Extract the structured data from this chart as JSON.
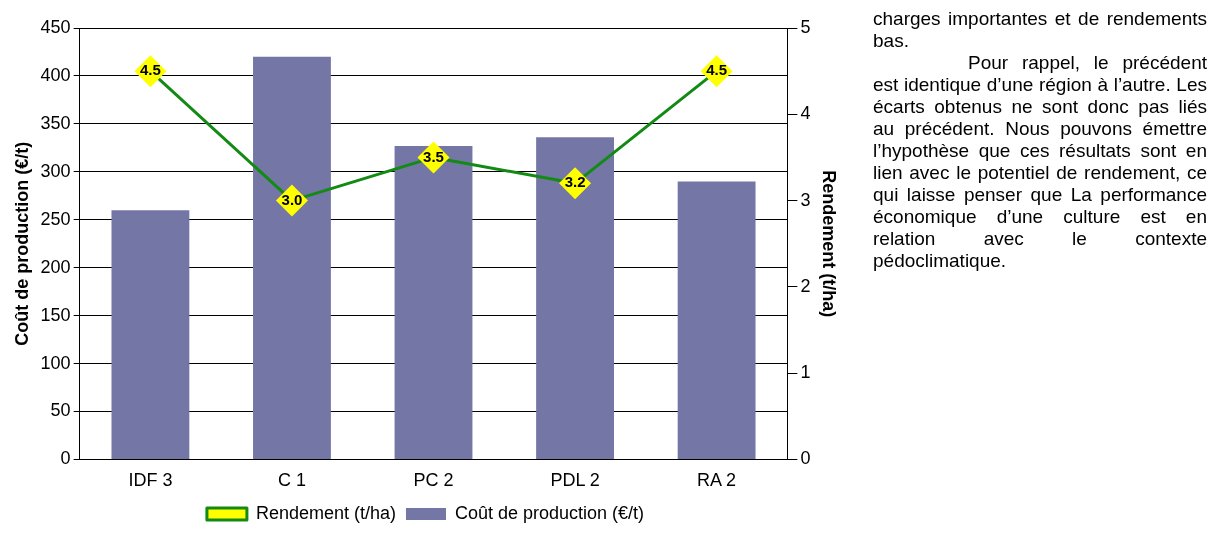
{
  "chart_data": {
    "type": "bar",
    "categories": [
      "IDF 3",
      "C 1",
      "PC 2",
      "PDL 2",
      "RA 2"
    ],
    "series": [
      {
        "name": "Coût de production (€/t)",
        "color": "#7476a6",
        "values": [
          260,
          420,
          327,
          336,
          290
        ]
      },
      {
        "name": "Rendement (t/ha)",
        "type": "line",
        "axis": "y2",
        "color": "#138a13",
        "colors": [
          "#ffff00",
          "#ffff00",
          "#ffff00",
          "#ffff00",
          "#ffff00"
        ],
        "values": [
          4.5,
          3.0,
          3.5,
          3.2,
          4.5
        ],
        "value_labels": [
          "4.5",
          "3.0",
          "3.5",
          "3.2",
          "4.5"
        ]
      }
    ],
    "ylabel": "Coût de production (€/t)",
    "y2label": "Rendement (t/ha)",
    "ylim": [
      0,
      450
    ],
    "yticks": [
      0,
      50,
      100,
      150,
      200,
      250,
      300,
      350,
      400,
      450
    ],
    "y2lim": [
      0,
      5
    ],
    "y2ticks": [
      0,
      1,
      2,
      3,
      4,
      5
    ],
    "grid": "y",
    "legend": "bottom",
    "marker": "diamond",
    "annotations": [
      "charges importantes et de rendements bas.",
      "Pour rappel, le précédent est identique d’une région à l’autre. Les écarts obtenus ne sont donc pas liés au précédent. Nous pouvons émettre l’hypothèse que ces résultats sont en lien avec le potentiel de rendement, ce qui laisse penser que La performance économique d’une culture est en relation avec le contexte pédoclimatique."
    ]
  }
}
